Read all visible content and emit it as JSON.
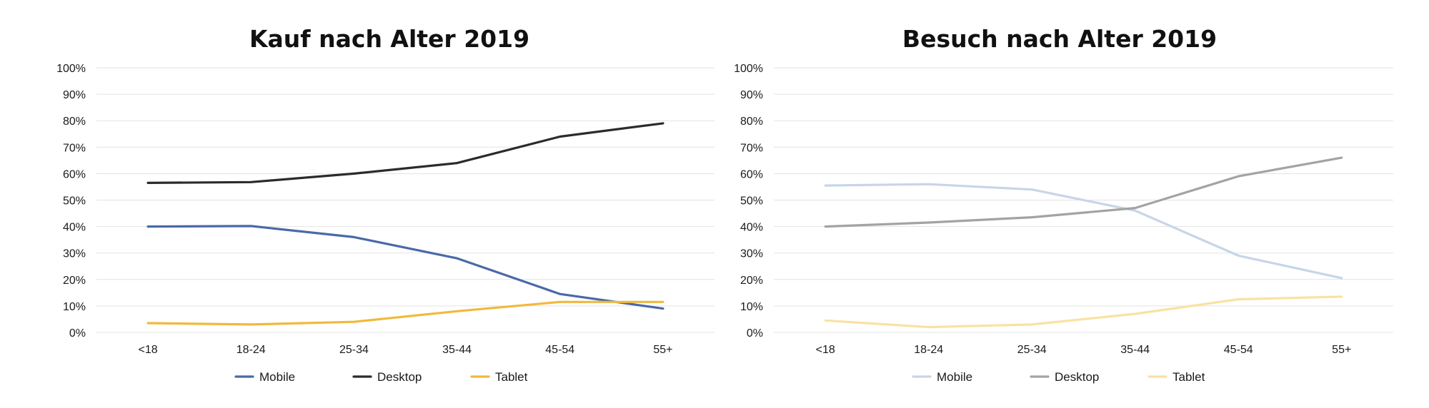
{
  "chart_data": [
    {
      "type": "line",
      "title": "Kauf nach Alter 2019",
      "categories": [
        "<18",
        "18-24",
        "25-34",
        "35-44",
        "45-54",
        "55+"
      ],
      "y_ticks": [
        "0%",
        "10%",
        "20%",
        "30%",
        "40%",
        "50%",
        "60%",
        "70%",
        "80%",
        "90%",
        "100%"
      ],
      "ylim": [
        0,
        100
      ],
      "grid": true,
      "legend_position": "bottom",
      "series": [
        {
          "name": "Mobile",
          "color": "#4a69a8",
          "values": [
            40,
            40.2,
            36,
            28,
            14.5,
            9
          ]
        },
        {
          "name": "Desktop",
          "color": "#2b2b2b",
          "values": [
            56.5,
            56.8,
            60,
            64,
            74,
            79
          ]
        },
        {
          "name": "Tablet",
          "color": "#f1b93c",
          "values": [
            3.5,
            3,
            4,
            8,
            11.5,
            11.5
          ]
        }
      ]
    },
    {
      "type": "line",
      "title": "Besuch nach Alter 2019",
      "categories": [
        "<18",
        "18-24",
        "25-34",
        "35-44",
        "45-54",
        "55+"
      ],
      "y_ticks": [
        "0%",
        "10%",
        "20%",
        "30%",
        "40%",
        "50%",
        "60%",
        "70%",
        "80%",
        "90%",
        "100%"
      ],
      "ylim": [
        0,
        100
      ],
      "grid": true,
      "legend_position": "bottom",
      "series": [
        {
          "name": "Mobile",
          "color": "#c7d5e8",
          "values": [
            55.5,
            56,
            54,
            46,
            29,
            20.5
          ]
        },
        {
          "name": "Desktop",
          "color": "#a3a3a3",
          "values": [
            40,
            41.5,
            43.5,
            47,
            59,
            66
          ]
        },
        {
          "name": "Tablet",
          "color": "#f9e2a1",
          "values": [
            4.5,
            2,
            3,
            7,
            12.5,
            13.5
          ]
        }
      ]
    }
  ]
}
